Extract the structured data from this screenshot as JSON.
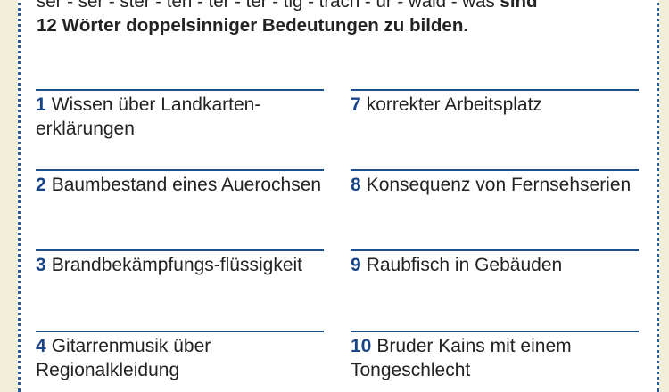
{
  "intro": {
    "line1_normal": "ser - ser - ster - ten - ter - ter - tig - trach - ur - wald - was ",
    "line1_bold": "sind",
    "line2_bold": "12 Wörter doppelsinniger Bedeutungen zu bilden."
  },
  "items": [
    {
      "num": "1",
      "text": "Wissen über Landkarten-erklärungen"
    },
    {
      "num": "2",
      "text": "Baumbestand eines Auerochsen"
    },
    {
      "num": "3",
      "text": "Brandbekämpfungs-flüssigkeit"
    },
    {
      "num": "4",
      "text": "Gitarrenmusik über Regionalkleidung"
    },
    {
      "num": "7",
      "text": "korrekter Arbeitsplatz"
    },
    {
      "num": "8",
      "text": "Konsequenz von Fernsehserien"
    },
    {
      "num": "9",
      "text": "Raubfisch in Gebäuden"
    },
    {
      "num": "10",
      "text": "Bruder Kains mit einem Tongeschlecht"
    }
  ]
}
